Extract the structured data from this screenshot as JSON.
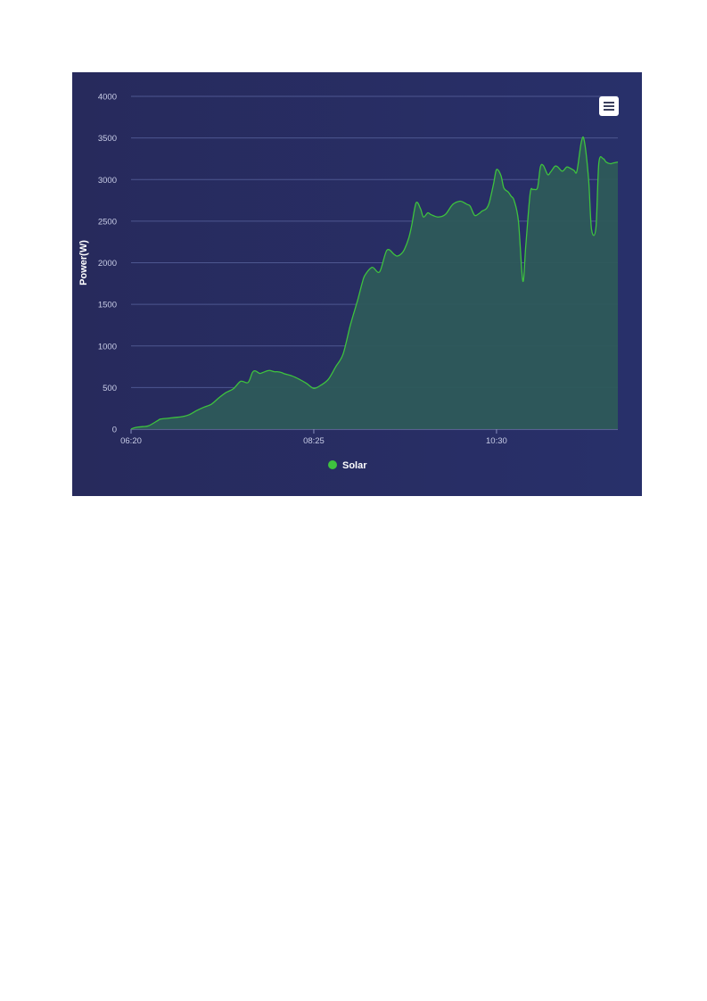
{
  "chart_data": {
    "type": "area",
    "title": "",
    "xlabel": "",
    "ylabel": "Power(W)",
    "x_ticks": [
      "06:20",
      "08:25",
      "10:30"
    ],
    "x_tick_minutes": [
      380,
      505,
      630
    ],
    "xlim_minutes": [
      380,
      713
    ],
    "ylim": [
      0,
      4000
    ],
    "y_ticks": [
      0,
      500,
      1000,
      1500,
      2000,
      2500,
      3000,
      3500,
      4000
    ],
    "grid": true,
    "legend": "bottom-center",
    "series": [
      {
        "name": "Solar",
        "color": "#3ec23e",
        "fill_color": "#2d5a5a",
        "x_minutes": [
          380,
          382,
          385,
          388,
          392,
          398,
          400,
          405,
          410,
          415,
          420,
          425,
          430,
          435,
          440,
          445,
          450,
          455,
          460,
          463,
          465,
          468,
          470,
          473,
          475,
          478,
          480,
          483,
          485,
          490,
          495,
          500,
          505,
          510,
          515,
          520,
          525,
          530,
          535,
          538,
          540,
          545,
          550,
          555,
          560,
          562,
          565,
          567,
          570,
          572,
          575,
          578,
          580,
          583,
          585,
          590,
          595,
          600,
          605,
          608,
          610,
          612,
          615,
          618,
          620,
          623,
          625,
          628,
          630,
          633,
          635,
          638,
          640,
          642,
          645,
          648,
          650,
          653,
          655,
          658,
          660,
          662,
          665,
          667,
          670,
          672,
          675,
          678,
          680,
          683,
          685,
          688,
          690,
          693,
          695,
          698,
          700,
          703,
          705,
          708,
          710,
          713
        ],
        "values": [
          0,
          15,
          25,
          30,
          40,
          100,
          120,
          130,
          140,
          150,
          175,
          225,
          265,
          300,
          375,
          440,
          485,
          575,
          560,
          680,
          700,
          670,
          680,
          700,
          705,
          690,
          690,
          680,
          665,
          640,
          600,
          550,
          490,
          530,
          600,
          750,
          900,
          1250,
          1550,
          1750,
          1850,
          1945,
          1890,
          2150,
          2100,
          2080,
          2110,
          2160,
          2300,
          2450,
          2720,
          2650,
          2550,
          2600,
          2580,
          2550,
          2580,
          2700,
          2740,
          2720,
          2700,
          2680,
          2570,
          2590,
          2620,
          2650,
          2720,
          2950,
          3120,
          3050,
          2900,
          2850,
          2800,
          2750,
          2500,
          1780,
          2200,
          2830,
          2880,
          2900,
          3150,
          3170,
          3060,
          3090,
          3160,
          3150,
          3100,
          3150,
          3140,
          3110,
          3100,
          3450,
          3470,
          3000,
          2400,
          2420,
          3200,
          3250,
          3210,
          3190,
          3200,
          3210
        ]
      }
    ]
  },
  "legend": {
    "label": "Solar",
    "color": "#3ec23e"
  },
  "menu": {
    "icon": "hamburger-menu-icon"
  }
}
